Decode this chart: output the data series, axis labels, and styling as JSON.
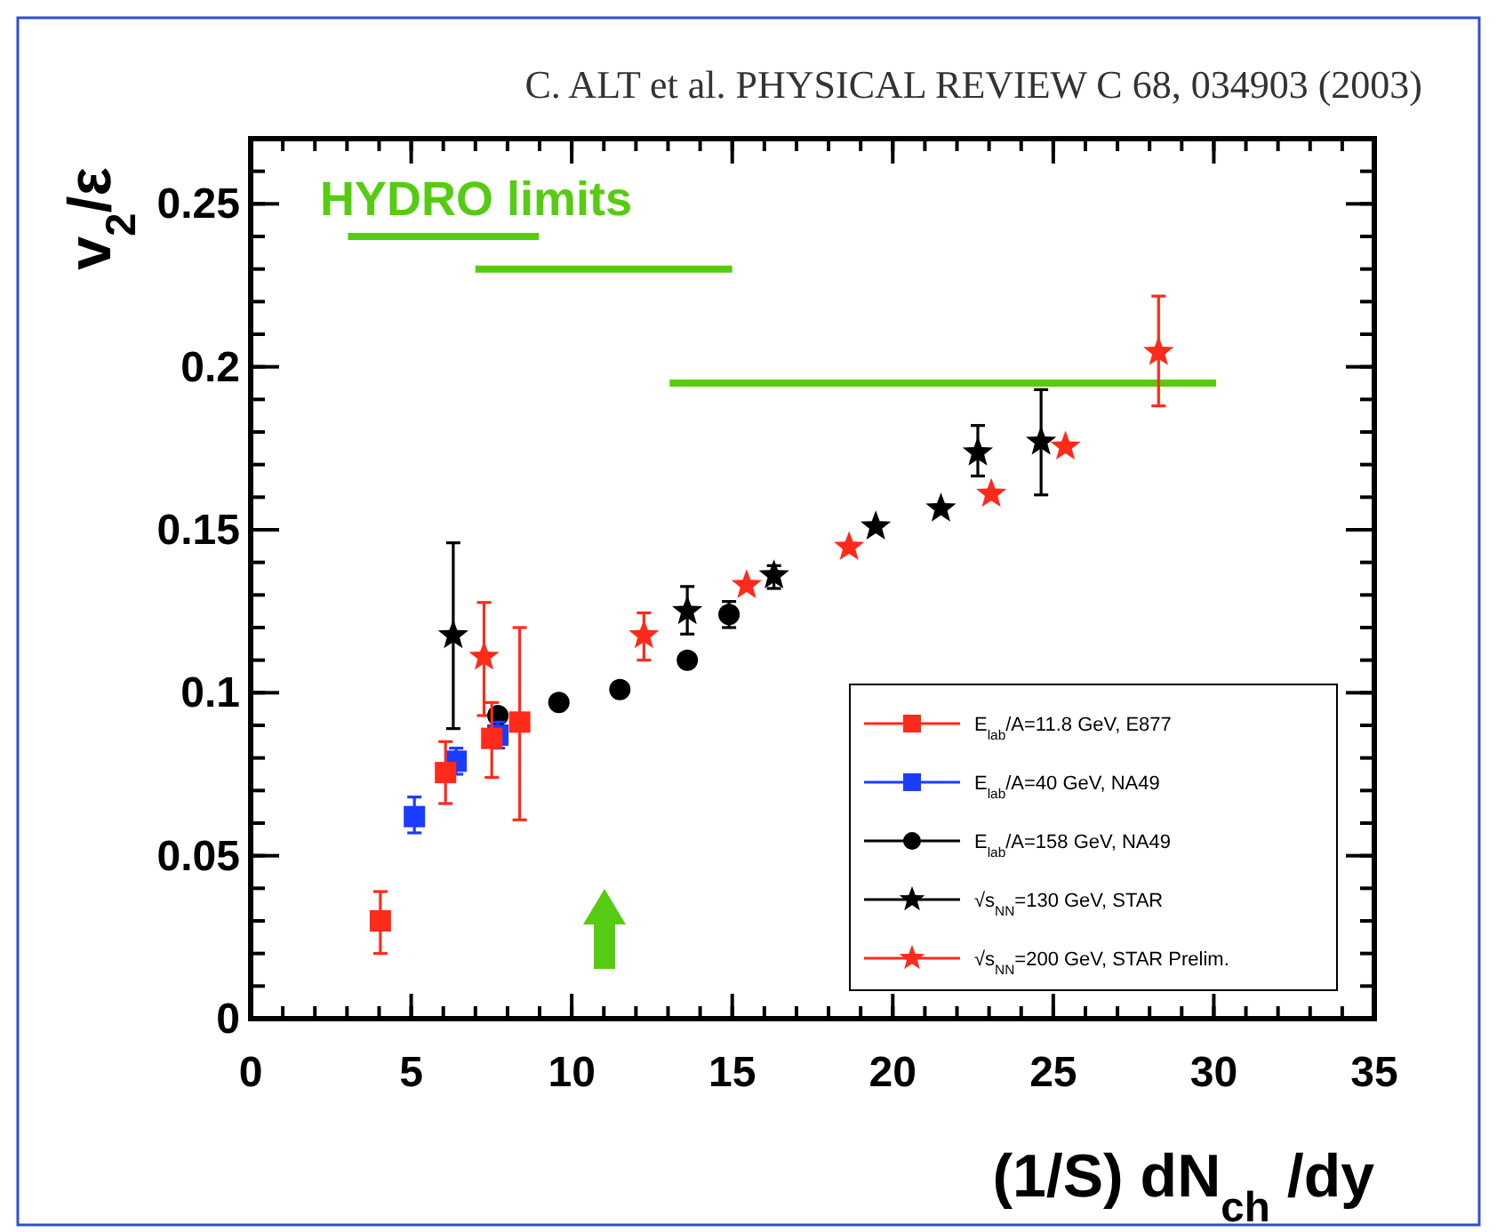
{
  "chart_data": {
    "type": "scatter",
    "title": "C. ALT et al. PHYSICAL REVIEW C 68, 034903 (2003)",
    "xlabel": "(1/S) dN$_{ch}$ /dy",
    "ylabel": "v$_{2}$/ε",
    "xlim": [
      0,
      35
    ],
    "xticks": [
      0,
      5,
      10,
      15,
      20,
      25,
      30,
      35
    ],
    "ylim": [
      0,
      0.27
    ],
    "yticks": [
      0,
      0.05,
      0.1,
      0.15,
      0.2,
      0.25
    ],
    "grid": false,
    "legend": "bottom right",
    "annotations": [
      "HYDRO limits"
    ],
    "series": [
      {
        "name": "E$_{lab}$/A=11.8 GeV, E877",
        "color": "#ff2a1a",
        "marker": "square",
        "x": [
          4.04,
          6.07,
          7.51,
          8.38
        ],
        "values": [
          0.03,
          0.0755,
          0.086,
          0.091
        ],
        "errors": [
          [
            0.02,
            0.039
          ],
          [
            0.066,
            0.085
          ],
          [
            0.074,
            0.097
          ],
          [
            0.061,
            0.12
          ]
        ]
      },
      {
        "name": "E$_{lab}$/A=40 GeV, NA49",
        "color": "#1a3cff",
        "marker": "square",
        "x": [
          5.1,
          6.4,
          7.7
        ],
        "values": [
          0.062,
          0.079,
          0.087
        ],
        "errors": [
          [
            0.057,
            0.068
          ],
          [
            0.075,
            0.083
          ],
          [
            0.083,
            0.091
          ]
        ]
      },
      {
        "name": "E$_{lab}$/A=158 GeV, NA49",
        "color": "#000000",
        "marker": "circle",
        "x": [
          7.7,
          9.6,
          11.5,
          13.6,
          14.9
        ],
        "values": [
          0.093,
          0.097,
          0.101,
          0.11,
          0.124
        ],
        "errors": [
          null,
          null,
          null,
          null,
          [
            0.12,
            0.128
          ]
        ]
      },
      {
        "name": "√s$_{NN}$=130 GeV, STAR",
        "color": "#000000",
        "marker": "star",
        "x": [
          6.31,
          13.6,
          16.3,
          19.47,
          21.5,
          22.65,
          24.62
        ],
        "values": [
          0.1176,
          0.125,
          0.136,
          0.151,
          0.1565,
          0.1737,
          0.177
        ],
        "errors": [
          [
            0.089,
            0.146
          ],
          [
            0.118,
            0.1326
          ],
          [
            0.132,
            0.139
          ],
          null,
          null,
          [
            0.1665,
            0.182
          ],
          [
            0.1607,
            0.193
          ]
        ]
      },
      {
        "name": "√s$_{NN}$=200 GeV, STAR Prelim.",
        "color": "#ff2a1a",
        "marker": "star",
        "x": [
          7.27,
          12.25,
          15.45,
          18.64,
          23.07,
          25.38,
          28.28
        ],
        "values": [
          0.111,
          0.1176,
          0.133,
          0.1447,
          0.161,
          0.1755,
          0.2045
        ],
        "errors": [
          [
            0.093,
            0.1277
          ],
          [
            0.11,
            0.1245
          ],
          null,
          null,
          null,
          null,
          [
            0.188,
            0.2217
          ]
        ]
      },
      {
        "type": "line",
        "color": "#55cc11",
        "x": [
          3.03,
          8.98
        ],
        "values": [
          0.24,
          0.24
        ]
      },
      {
        "type": "line",
        "color": "#55cc11",
        "x": [
          7.0,
          15.0
        ],
        "values": [
          0.23,
          0.23
        ]
      },
      {
        "type": "line",
        "color": "#55cc11",
        "x": [
          13.05,
          30.07
        ],
        "values": [
          0.195,
          0.195
        ]
      }
    ]
  }
}
